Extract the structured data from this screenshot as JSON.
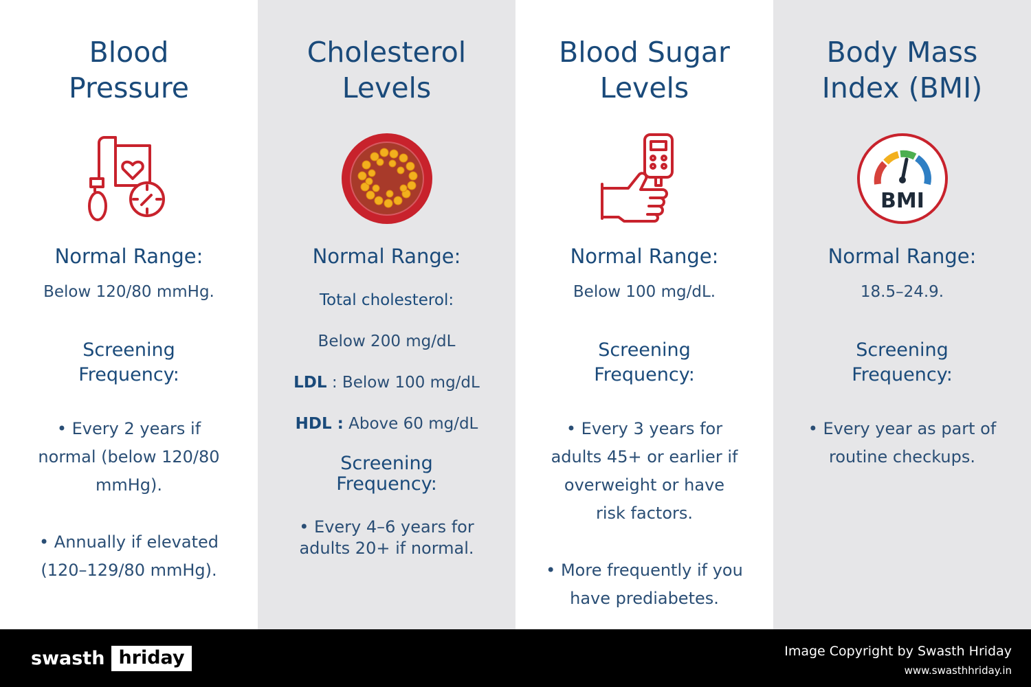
{
  "columns": [
    {
      "title_l1": "Blood",
      "title_l2": "Pressure",
      "icon": "blood-pressure-monitor-icon",
      "normal_label": "Normal Range:",
      "value": "Below 120/80 mmHg.",
      "screening_l1": "Screening",
      "screening_l2": "Frequency:",
      "bullets": [
        [
          "• Every 2 years if",
          "normal (below 120/80",
          "mmHg)."
        ],
        [
          "• Annually if elevated",
          "(120–129/80 mmHg)."
        ]
      ]
    },
    {
      "title_l1": "Cholesterol",
      "title_l2": "Levels",
      "icon": "cholesterol-artery-icon",
      "normal_label": "Normal Range:",
      "total_label": "Total cholesterol:",
      "total_value": "Below 200 mg/dL",
      "ldl_label": "LDL",
      "ldl_value": " : Below 100 mg/dL",
      "hdl_label": "HDL :",
      "hdl_value": " Above 60 mg/dL",
      "screening_l1": "Screening",
      "screening_l2": "Frequency:",
      "bullets": [
        [
          "• Every 4–6 years for",
          "adults 20+ if normal."
        ]
      ]
    },
    {
      "title_l1": "Blood Sugar",
      "title_l2": "Levels",
      "icon": "glucose-meter-icon",
      "normal_label": "Normal Range:",
      "value": "Below 100 mg/dL.",
      "screening_l1": "Screening",
      "screening_l2": "Frequency:",
      "bullets": [
        [
          "• Every 3 years for",
          "adults 45+ or earlier if",
          "overweight or have",
          "risk factors."
        ],
        [
          "• More frequently if you",
          "have prediabetes."
        ]
      ]
    },
    {
      "title_l1": "Body Mass",
      "title_l2": "Index (BMI)",
      "icon": "bmi-gauge-icon",
      "icon_text": "BMI",
      "normal_label": "Normal Range:",
      "value": "18.5–24.9.",
      "screening_l1": "Screening",
      "screening_l2": "Frequency:",
      "bullets": [
        [
          "• Every year as part of",
          "routine checkups."
        ]
      ]
    }
  ],
  "footer": {
    "logo_left": "swasth",
    "logo_right": "hriday",
    "copyright": "Image Copyright by Swasth Hriday",
    "url": "www.swasthhriday.in"
  },
  "colors": {
    "title": "#1a4a7a",
    "icon_red": "#c8222c",
    "gray_column": "#e6e6e8",
    "footer_bg": "#000000"
  }
}
